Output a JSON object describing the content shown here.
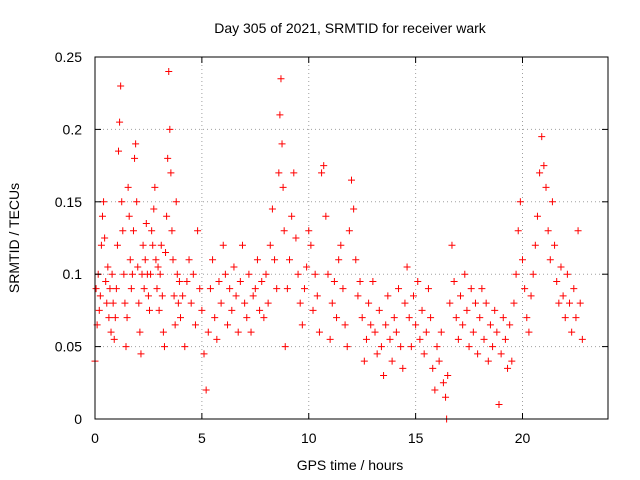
{
  "chart_data": {
    "type": "scatter",
    "title": "Day 305 of 2021, SRMTID for receiver wark",
    "xlabel": "GPS time / hours",
    "ylabel": "SRMTID / TECUs",
    "xlim": [
      0,
      24
    ],
    "ylim": [
      0,
      0.25
    ],
    "x_ticks": [
      0,
      5,
      10,
      15,
      20
    ],
    "x_tick_labels": [
      "0",
      "5",
      "10",
      "15",
      "20"
    ],
    "y_ticks": [
      0,
      0.05,
      0.1,
      0.15,
      0.2,
      0.25
    ],
    "y_tick_labels": [
      "0",
      "0.05",
      "0.1",
      "0.15",
      "0.2",
      "0.25"
    ],
    "grid": true,
    "marker": "plus",
    "color": "#ff0000",
    "series": [
      {
        "name": "SRMTID",
        "points": [
          [
            0.0,
            0.04
          ],
          [
            0.05,
            0.09
          ],
          [
            0.1,
            0.065
          ],
          [
            0.15,
            0.1
          ],
          [
            0.2,
            0.075
          ],
          [
            0.25,
            0.085
          ],
          [
            0.3,
            0.12
          ],
          [
            0.35,
            0.14
          ],
          [
            0.4,
            0.15
          ],
          [
            0.45,
            0.125
          ],
          [
            0.5,
            0.095
          ],
          [
            0.55,
            0.08
          ],
          [
            0.6,
            0.105
          ],
          [
            0.65,
            0.07
          ],
          [
            0.7,
            0.09
          ],
          [
            0.75,
            0.06
          ],
          [
            0.8,
            0.1
          ],
          [
            0.85,
            0.08
          ],
          [
            0.9,
            0.055
          ],
          [
            0.95,
            0.07
          ],
          [
            1.0,
            0.09
          ],
          [
            1.05,
            0.12
          ],
          [
            1.1,
            0.185
          ],
          [
            1.15,
            0.205
          ],
          [
            1.2,
            0.23
          ],
          [
            1.25,
            0.15
          ],
          [
            1.3,
            0.13
          ],
          [
            1.35,
            0.1
          ],
          [
            1.4,
            0.08
          ],
          [
            1.45,
            0.05
          ],
          [
            1.5,
            0.07
          ],
          [
            1.55,
            0.16
          ],
          [
            1.6,
            0.14
          ],
          [
            1.65,
            0.11
          ],
          [
            1.7,
            0.09
          ],
          [
            1.75,
            0.1
          ],
          [
            1.8,
            0.13
          ],
          [
            1.85,
            0.18
          ],
          [
            1.9,
            0.19
          ],
          [
            1.95,
            0.15
          ],
          [
            2.0,
            0.105
          ],
          [
            2.05,
            0.08
          ],
          [
            2.1,
            0.06
          ],
          [
            2.15,
            0.045
          ],
          [
            2.2,
            0.1
          ],
          [
            2.25,
            0.12
          ],
          [
            2.3,
            0.09
          ],
          [
            2.35,
            0.11
          ],
          [
            2.4,
            0.135
          ],
          [
            2.45,
            0.1
          ],
          [
            2.5,
            0.085
          ],
          [
            2.55,
            0.075
          ],
          [
            2.6,
            0.1
          ],
          [
            2.65,
            0.13
          ],
          [
            2.7,
            0.12
          ],
          [
            2.75,
            0.145
          ],
          [
            2.8,
            0.16
          ],
          [
            2.85,
            0.11
          ],
          [
            2.9,
            0.09
          ],
          [
            2.95,
            0.105
          ],
          [
            3.0,
            0.075
          ],
          [
            3.05,
            0.1
          ],
          [
            3.1,
            0.12
          ],
          [
            3.15,
            0.085
          ],
          [
            3.2,
            0.06
          ],
          [
            3.25,
            0.05
          ],
          [
            3.3,
            0.115
          ],
          [
            3.35,
            0.14
          ],
          [
            3.4,
            0.18
          ],
          [
            3.45,
            0.24
          ],
          [
            3.5,
            0.2
          ],
          [
            3.55,
            0.17
          ],
          [
            3.6,
            0.13
          ],
          [
            3.65,
            0.11
          ],
          [
            3.7,
            0.085
          ],
          [
            3.75,
            0.065
          ],
          [
            3.8,
            0.15
          ],
          [
            3.85,
            0.1
          ],
          [
            3.9,
            0.08
          ],
          [
            3.95,
            0.095
          ],
          [
            4.0,
            0.07
          ],
          [
            4.1,
            0.085
          ],
          [
            4.2,
            0.05
          ],
          [
            4.3,
            0.095
          ],
          [
            4.4,
            0.11
          ],
          [
            4.5,
            0.08
          ],
          [
            4.6,
            0.1
          ],
          [
            4.7,
            0.065
          ],
          [
            4.8,
            0.13
          ],
          [
            4.9,
            0.09
          ],
          [
            5.0,
            0.075
          ],
          [
            5.1,
            0.045
          ],
          [
            5.2,
            0.02
          ],
          [
            5.3,
            0.06
          ],
          [
            5.4,
            0.09
          ],
          [
            5.5,
            0.11
          ],
          [
            5.6,
            0.07
          ],
          [
            5.7,
            0.055
          ],
          [
            5.8,
            0.095
          ],
          [
            5.9,
            0.08
          ],
          [
            6.0,
            0.12
          ],
          [
            6.1,
            0.1
          ],
          [
            6.2,
            0.065
          ],
          [
            6.3,
            0.09
          ],
          [
            6.4,
            0.075
          ],
          [
            6.5,
            0.105
          ],
          [
            6.6,
            0.085
          ],
          [
            6.7,
            0.06
          ],
          [
            6.8,
            0.095
          ],
          [
            6.9,
            0.12
          ],
          [
            7.0,
            0.08
          ],
          [
            7.1,
            0.07
          ],
          [
            7.2,
            0.1
          ],
          [
            7.3,
            0.06
          ],
          [
            7.4,
            0.085
          ],
          [
            7.5,
            0.09
          ],
          [
            7.6,
            0.11
          ],
          [
            7.7,
            0.075
          ],
          [
            7.8,
            0.095
          ],
          [
            7.9,
            0.07
          ],
          [
            8.0,
            0.1
          ],
          [
            8.1,
            0.08
          ],
          [
            8.2,
            0.12
          ],
          [
            8.3,
            0.145
          ],
          [
            8.4,
            0.11
          ],
          [
            8.5,
            0.09
          ],
          [
            8.6,
            0.17
          ],
          [
            8.65,
            0.21
          ],
          [
            8.7,
            0.235
          ],
          [
            8.75,
            0.19
          ],
          [
            8.8,
            0.16
          ],
          [
            8.85,
            0.13
          ],
          [
            8.9,
            0.05
          ],
          [
            9.0,
            0.09
          ],
          [
            9.1,
            0.11
          ],
          [
            9.2,
            0.14
          ],
          [
            9.3,
            0.17
          ],
          [
            9.4,
            0.125
          ],
          [
            9.5,
            0.1
          ],
          [
            9.6,
            0.08
          ],
          [
            9.7,
            0.065
          ],
          [
            9.8,
            0.09
          ],
          [
            9.9,
            0.105
          ],
          [
            10.0,
            0.13
          ],
          [
            10.1,
            0.12
          ],
          [
            10.2,
            0.075
          ],
          [
            10.3,
            0.1
          ],
          [
            10.4,
            0.085
          ],
          [
            10.5,
            0.06
          ],
          [
            10.6,
            0.17
          ],
          [
            10.7,
            0.175
          ],
          [
            10.8,
            0.14
          ],
          [
            10.9,
            0.1
          ],
          [
            11.0,
            0.055
          ],
          [
            11.1,
            0.08
          ],
          [
            11.2,
            0.095
          ],
          [
            11.3,
            0.07
          ],
          [
            11.4,
            0.11
          ],
          [
            11.5,
            0.12
          ],
          [
            11.6,
            0.09
          ],
          [
            11.7,
            0.065
          ],
          [
            11.8,
            0.05
          ],
          [
            11.9,
            0.13
          ],
          [
            12.0,
            0.165
          ],
          [
            12.1,
            0.145
          ],
          [
            12.2,
            0.11
          ],
          [
            12.3,
            0.085
          ],
          [
            12.4,
            0.095
          ],
          [
            12.5,
            0.07
          ],
          [
            12.6,
            0.04
          ],
          [
            12.7,
            0.055
          ],
          [
            12.8,
            0.08
          ],
          [
            12.9,
            0.065
          ],
          [
            13.0,
            0.095
          ],
          [
            13.1,
            0.06
          ],
          [
            13.2,
            0.045
          ],
          [
            13.3,
            0.075
          ],
          [
            13.4,
            0.05
          ],
          [
            13.5,
            0.03
          ],
          [
            13.6,
            0.065
          ],
          [
            13.7,
            0.085
          ],
          [
            13.8,
            0.055
          ],
          [
            13.9,
            0.04
          ],
          [
            14.0,
            0.07
          ],
          [
            14.1,
            0.06
          ],
          [
            14.2,
            0.09
          ],
          [
            14.3,
            0.05
          ],
          [
            14.4,
            0.035
          ],
          [
            14.5,
            0.08
          ],
          [
            14.6,
            0.105
          ],
          [
            14.7,
            0.07
          ],
          [
            14.8,
            0.05
          ],
          [
            14.9,
            0.085
          ],
          [
            15.0,
            0.065
          ],
          [
            15.1,
            0.095
          ],
          [
            15.2,
            0.055
          ],
          [
            15.3,
            0.075
          ],
          [
            15.4,
            0.045
          ],
          [
            15.5,
            0.06
          ],
          [
            15.6,
            0.09
          ],
          [
            15.7,
            0.07
          ],
          [
            15.8,
            0.035
          ],
          [
            15.9,
            0.02
          ],
          [
            16.0,
            0.05
          ],
          [
            16.1,
            0.04
          ],
          [
            16.2,
            0.06
          ],
          [
            16.3,
            0.025
          ],
          [
            16.4,
            0.015
          ],
          [
            16.45,
            0.0
          ],
          [
            16.5,
            0.03
          ],
          [
            16.6,
            0.08
          ],
          [
            16.7,
            0.12
          ],
          [
            16.8,
            0.095
          ],
          [
            16.9,
            0.07
          ],
          [
            17.0,
            0.055
          ],
          [
            17.1,
            0.085
          ],
          [
            17.2,
            0.065
          ],
          [
            17.3,
            0.1
          ],
          [
            17.4,
            0.075
          ],
          [
            17.5,
            0.05
          ],
          [
            17.6,
            0.09
          ],
          [
            17.7,
            0.06
          ],
          [
            17.8,
            0.08
          ],
          [
            17.9,
            0.045
          ],
          [
            18.0,
            0.07
          ],
          [
            18.1,
            0.09
          ],
          [
            18.2,
            0.055
          ],
          [
            18.3,
            0.08
          ],
          [
            18.4,
            0.04
          ],
          [
            18.5,
            0.065
          ],
          [
            18.6,
            0.05
          ],
          [
            18.7,
            0.075
          ],
          [
            18.8,
            0.06
          ],
          [
            18.9,
            0.01
          ],
          [
            19.0,
            0.045
          ],
          [
            19.1,
            0.07
          ],
          [
            19.2,
            0.055
          ],
          [
            19.3,
            0.035
          ],
          [
            19.4,
            0.065
          ],
          [
            19.5,
            0.04
          ],
          [
            19.6,
            0.08
          ],
          [
            19.7,
            0.1
          ],
          [
            19.8,
            0.13
          ],
          [
            19.9,
            0.15
          ],
          [
            20.0,
            0.11
          ],
          [
            20.1,
            0.09
          ],
          [
            20.2,
            0.07
          ],
          [
            20.3,
            0.06
          ],
          [
            20.4,
            0.085
          ],
          [
            20.5,
            0.1
          ],
          [
            20.6,
            0.12
          ],
          [
            20.7,
            0.14
          ],
          [
            20.8,
            0.17
          ],
          [
            20.9,
            0.195
          ],
          [
            21.0,
            0.175
          ],
          [
            21.1,
            0.16
          ],
          [
            21.2,
            0.13
          ],
          [
            21.3,
            0.11
          ],
          [
            21.4,
            0.15
          ],
          [
            21.5,
            0.12
          ],
          [
            21.6,
            0.095
          ],
          [
            21.7,
            0.08
          ],
          [
            21.8,
            0.105
          ],
          [
            21.9,
            0.085
          ],
          [
            22.0,
            0.07
          ],
          [
            22.1,
            0.1
          ],
          [
            22.2,
            0.08
          ],
          [
            22.3,
            0.06
          ],
          [
            22.4,
            0.09
          ],
          [
            22.5,
            0.07
          ],
          [
            22.6,
            0.13
          ],
          [
            22.7,
            0.08
          ],
          [
            22.8,
            0.055
          ]
        ]
      }
    ]
  }
}
